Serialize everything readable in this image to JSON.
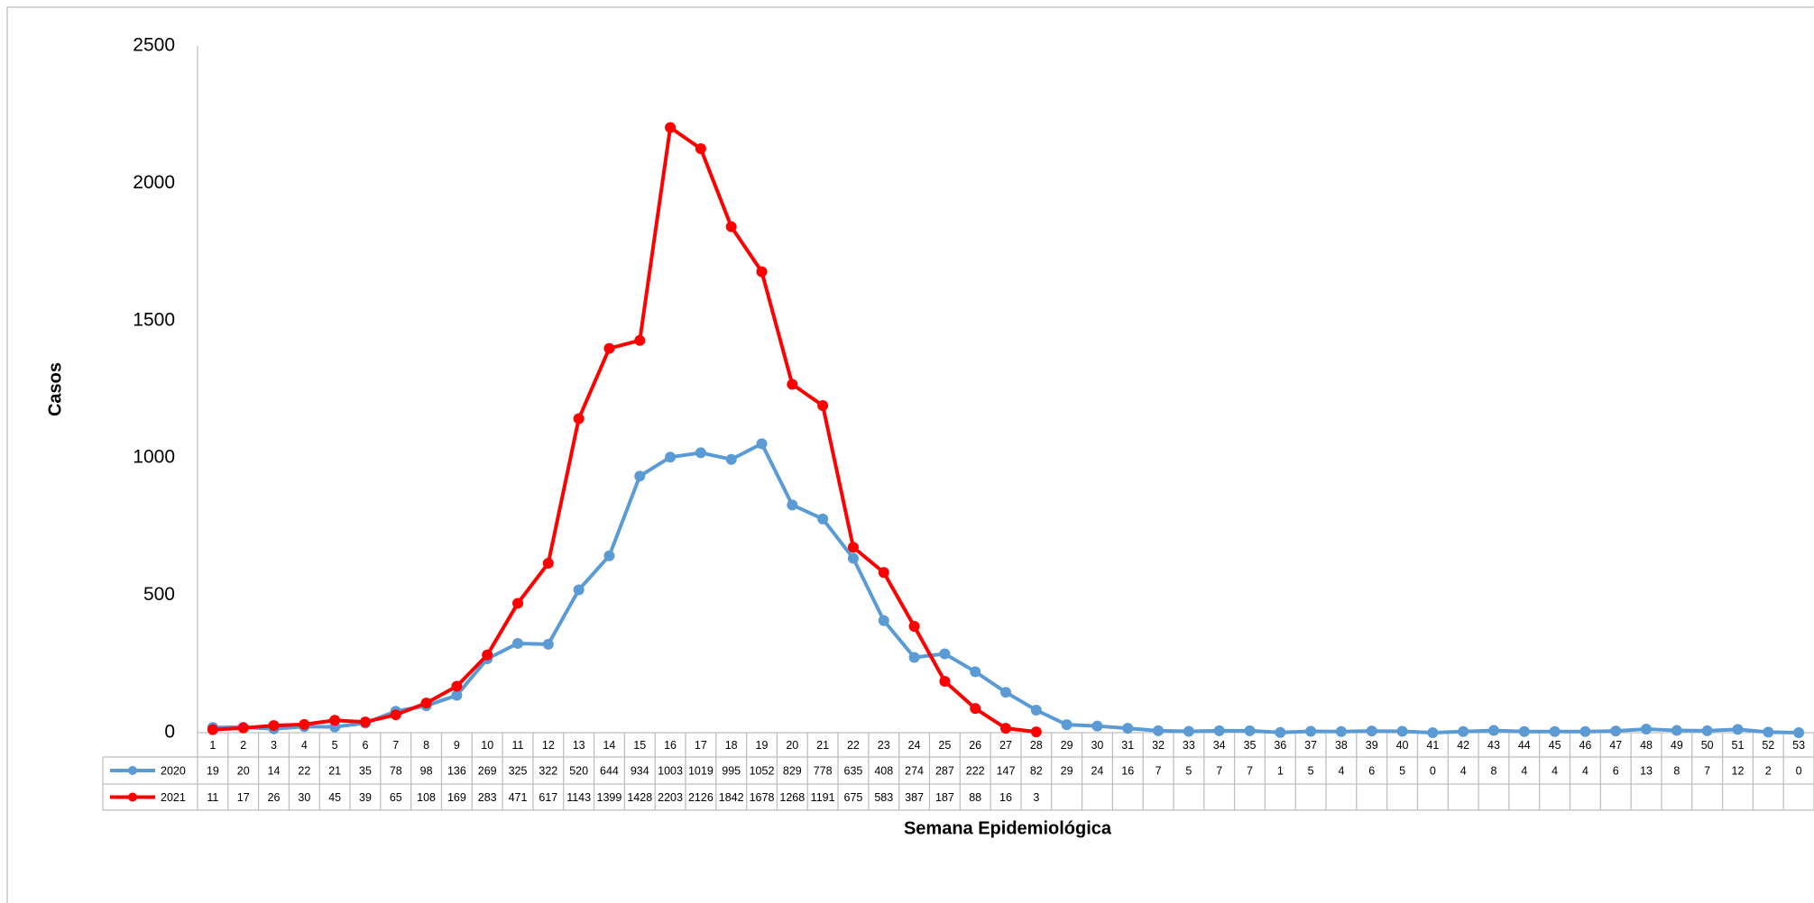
{
  "chart_data": {
    "type": "line",
    "y_label": "Casos",
    "x_label": "Semana Epidemiológica",
    "categories": [
      "1",
      "2",
      "3",
      "4",
      "5",
      "6",
      "7",
      "8",
      "9",
      "10",
      "11",
      "12",
      "13",
      "14",
      "15",
      "16",
      "17",
      "18",
      "19",
      "20",
      "21",
      "22",
      "23",
      "24",
      "25",
      "26",
      "27",
      "28",
      "29",
      "30",
      "31",
      "32",
      "33",
      "34",
      "35",
      "36",
      "37",
      "38",
      "39",
      "40",
      "41",
      "42",
      "43",
      "44",
      "45",
      "46",
      "47",
      "48",
      "49",
      "50",
      "51",
      "52",
      "53"
    ],
    "series": [
      {
        "name": "2020",
        "color": "#5b9bd5",
        "values": [
          19,
          20,
          14,
          22,
          21,
          35,
          78,
          98,
          136,
          269,
          325,
          322,
          520,
          644,
          934,
          1003,
          1019,
          995,
          1052,
          829,
          778,
          635,
          408,
          274,
          287,
          222,
          147,
          82,
          29,
          24,
          16,
          7,
          5,
          7,
          7,
          1,
          5,
          4,
          6,
          5,
          0,
          4,
          8,
          4,
          4,
          4,
          6,
          13,
          8,
          7,
          12,
          2,
          0
        ]
      },
      {
        "name": "2021",
        "color": "#ff0000",
        "values": [
          11,
          17,
          26,
          30,
          45,
          39,
          65,
          108,
          169,
          283,
          471,
          617,
          1143,
          1399,
          1428,
          2203,
          2126,
          1842,
          1678,
          1268,
          1191,
          675,
          583,
          387,
          187,
          88,
          16,
          3,
          null,
          null,
          null,
          null,
          null,
          null,
          null,
          null,
          null,
          null,
          null,
          null,
          null,
          null,
          null,
          null,
          null,
          null,
          null,
          null,
          null,
          null,
          null,
          null,
          null
        ]
      }
    ],
    "ylim": [
      0,
      2500
    ],
    "yticks": [
      0,
      500,
      1000,
      1500,
      2000,
      2500
    ],
    "grid": false,
    "data_table": true
  }
}
